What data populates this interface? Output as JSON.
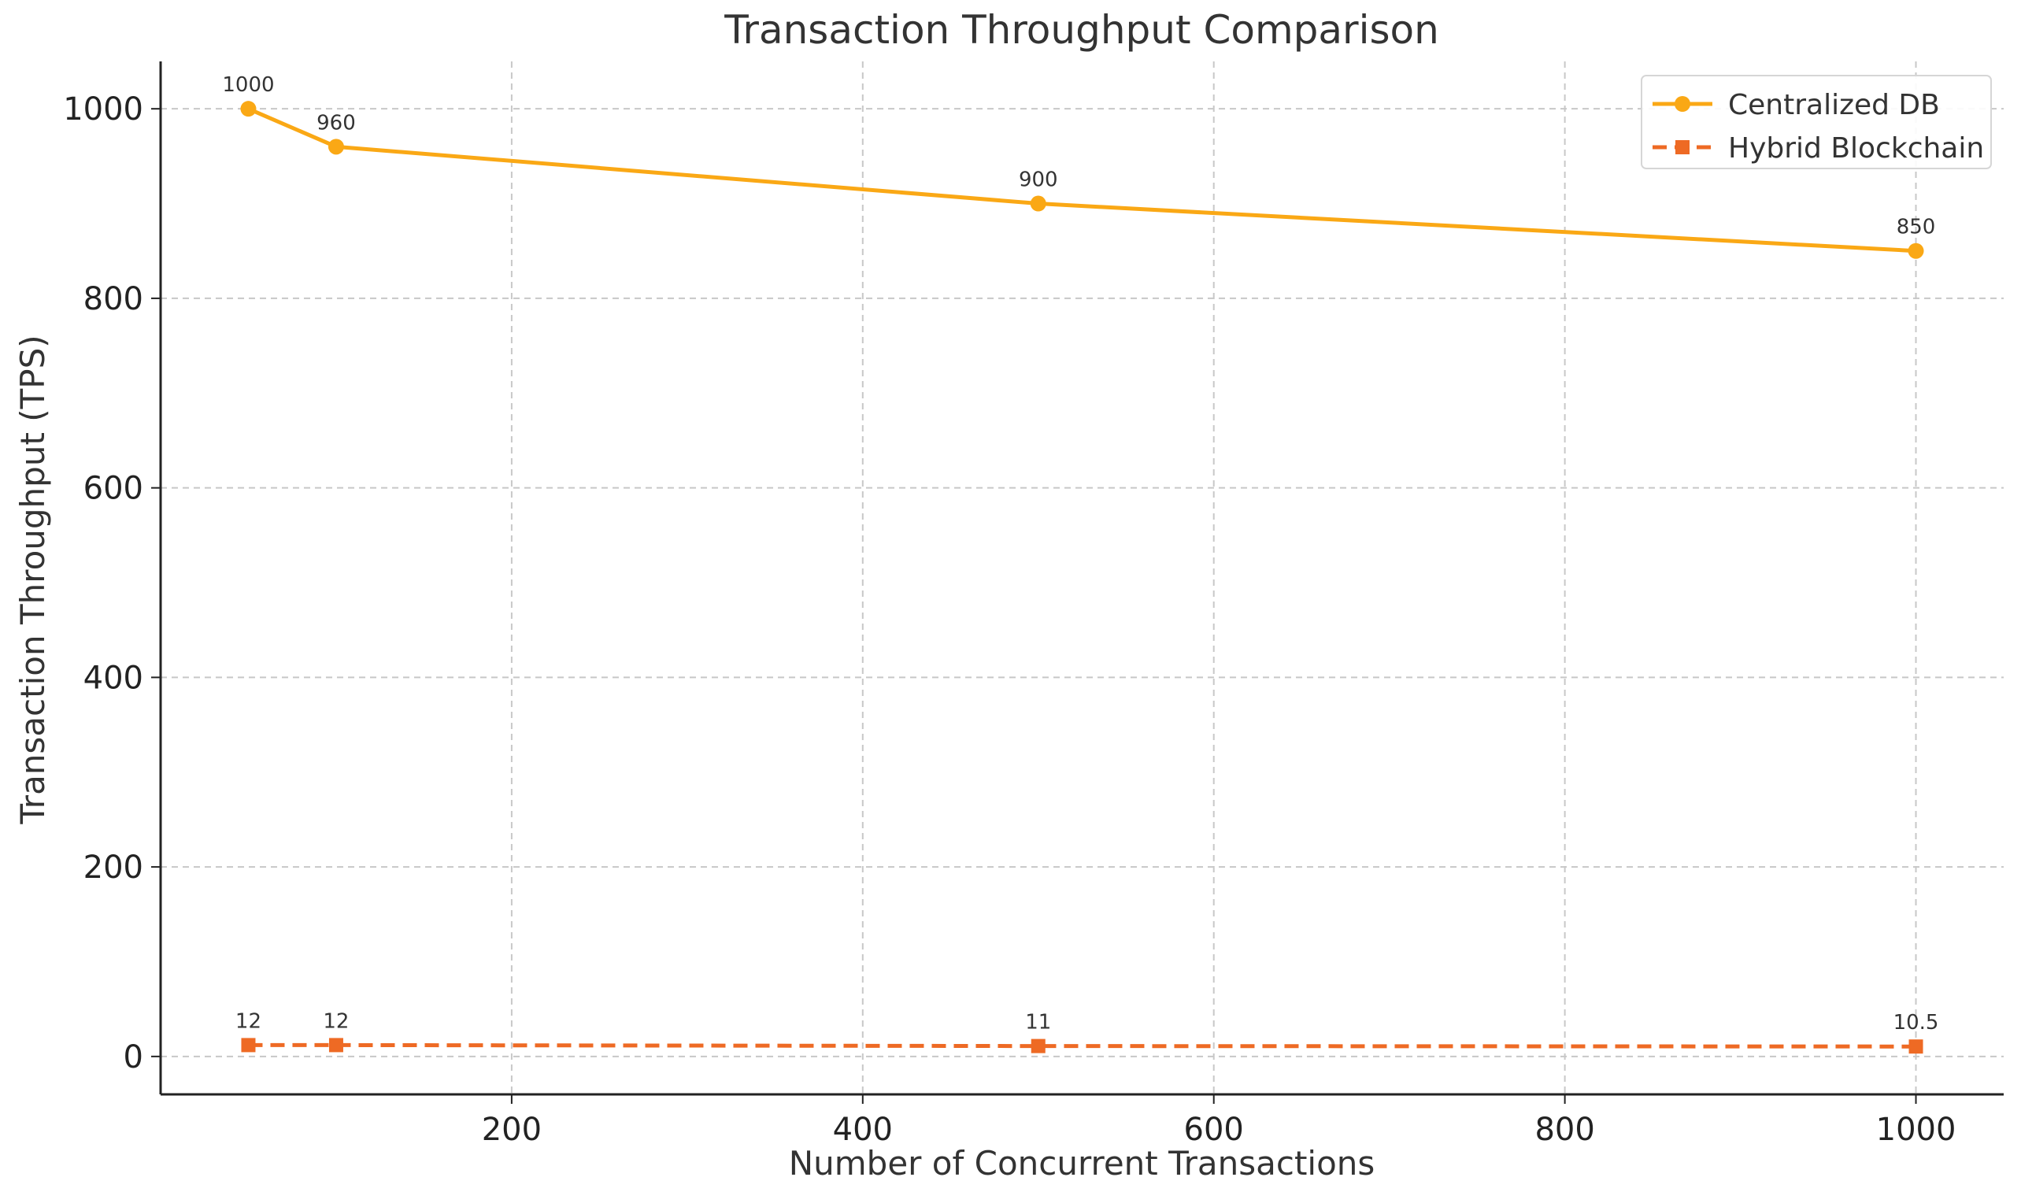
{
  "chart_data": {
    "type": "line",
    "title": "Transaction Throughput Comparison",
    "xlabel": "Number of Concurrent Transactions",
    "ylabel": "Transaction Throughput (TPS)",
    "x": [
      50,
      100,
      500,
      1000
    ],
    "xlim": [
      0,
      1050
    ],
    "ylim": [
      -40,
      1050
    ],
    "x_ticks": [
      200,
      400,
      600,
      800,
      1000
    ],
    "y_ticks": [
      0,
      200,
      400,
      600,
      800,
      1000
    ],
    "grid": true,
    "legend_position": "top-right",
    "series": [
      {
        "name": "Centralized DB",
        "values": [
          1000,
          960,
          900,
          850
        ],
        "labels": [
          "1000",
          "960",
          "900",
          "850"
        ],
        "color": "#FAA815",
        "line_style": "solid",
        "marker": "circle"
      },
      {
        "name": "Hybrid Blockchain",
        "values": [
          12,
          12,
          11,
          10.5
        ],
        "labels": [
          "12",
          "12",
          "11",
          "10.5"
        ],
        "color": "#EE6A24",
        "line_style": "dashed",
        "marker": "square"
      }
    ]
  }
}
